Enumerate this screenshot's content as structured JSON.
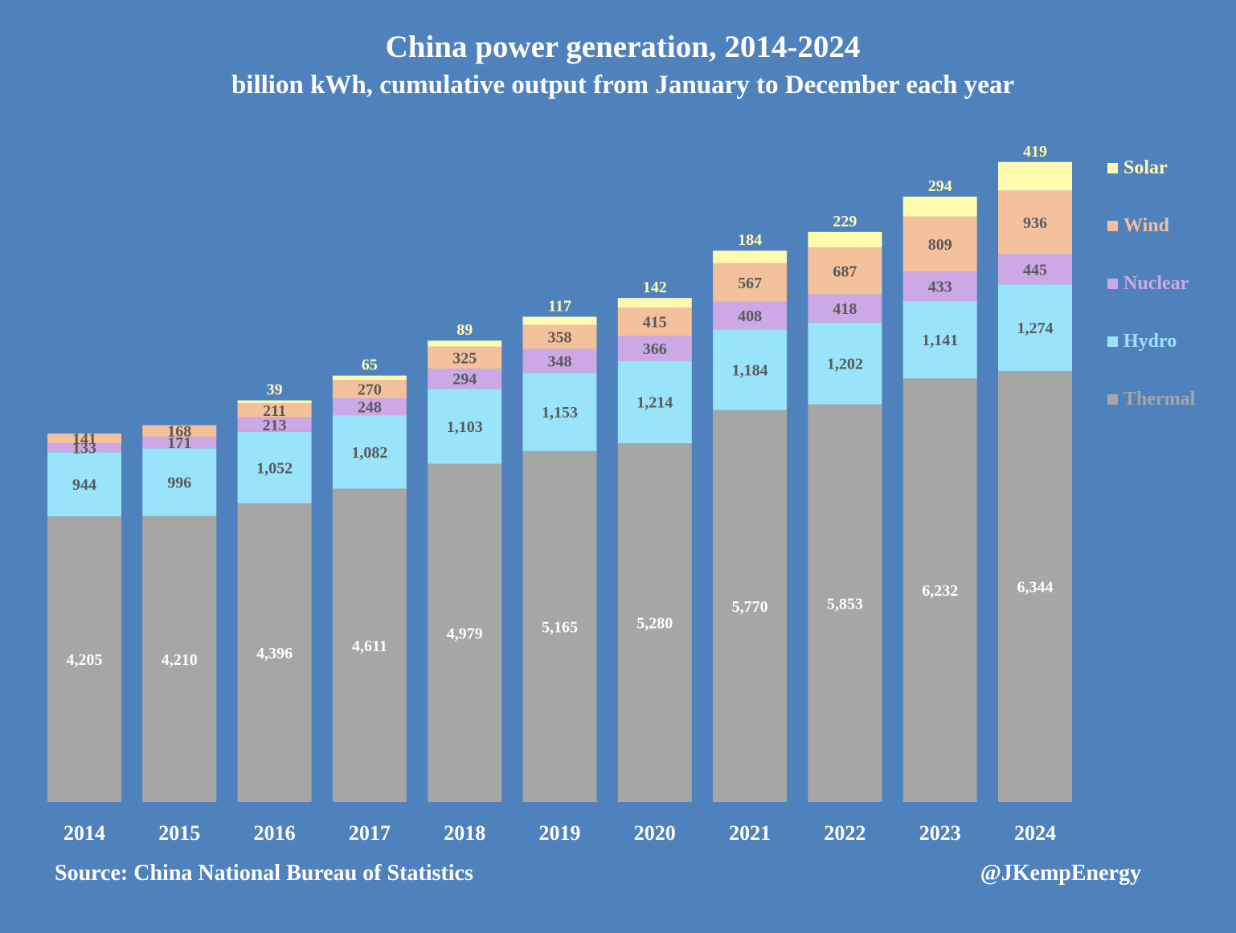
{
  "chart_data": {
    "type": "bar",
    "stacked": true,
    "title": "China power generation, 2014-2024",
    "subtitle": "billion kWh, cumulative output from January to December each year",
    "categories": [
      "2014",
      "2015",
      "2016",
      "2017",
      "2018",
      "2019",
      "2020",
      "2021",
      "2022",
      "2023",
      "2024"
    ],
    "series": [
      {
        "name": "Thermal",
        "color": "#a6a6a6",
        "label_color": "#ffffff",
        "values": [
          4205,
          4210,
          4396,
          4611,
          4979,
          5165,
          5280,
          5770,
          5853,
          6232,
          6344
        ],
        "labels": [
          "4,205",
          "4,210",
          "4,396",
          "4,611",
          "4,979",
          "5,165",
          "5,280",
          "5,770",
          "5,853",
          "6,232",
          "6,344"
        ]
      },
      {
        "name": "Hydro",
        "color": "#99e3fb",
        "label_color": "#595959",
        "values": [
          944,
          996,
          1052,
          1082,
          1103,
          1153,
          1214,
          1184,
          1202,
          1141,
          1274
        ],
        "labels": [
          "944",
          "996",
          "1,052",
          "1,082",
          "1,103",
          "1,153",
          "1,214",
          "1,184",
          "1,202",
          "1,141",
          "1,274"
        ]
      },
      {
        "name": "Nuclear",
        "color": "#cca8e6",
        "label_color": "#595959",
        "values": [
          133,
          171,
          213,
          248,
          294,
          348,
          366,
          408,
          418,
          433,
          445
        ],
        "labels": [
          "133",
          "171",
          "213",
          "248",
          "294",
          "348",
          "366",
          "408",
          "418",
          "433",
          "445"
        ]
      },
      {
        "name": "Wind",
        "color": "#f5c19c",
        "label_color": "#595959",
        "values": [
          141,
          168,
          211,
          270,
          325,
          358,
          415,
          567,
          687,
          809,
          936
        ],
        "labels": [
          "141",
          "168",
          "211",
          "270",
          "325",
          "358",
          "415",
          "567",
          "687",
          "809",
          "936"
        ]
      },
      {
        "name": "Solar",
        "color": "#fffcb0",
        "label_color": "#fffcb0",
        "values": [
          0,
          0,
          39,
          65,
          89,
          117,
          142,
          184,
          229,
          294,
          419
        ],
        "labels": [
          "",
          "",
          "39",
          "65",
          "89",
          "117",
          "142",
          "184",
          "229",
          "294",
          "419"
        ]
      }
    ],
    "legend_order": [
      "Solar",
      "Wind",
      "Nuclear",
      "Hydro",
      "Thermal"
    ],
    "legend_colors": {
      "Solar": "#fffcb0",
      "Wind": "#f5c19c",
      "Nuclear": "#cca8e6",
      "Hydro": "#99e3fb",
      "Thermal": "#a6a6a6"
    },
    "legend_position": "right",
    "ylim": [
      0,
      10000
    ],
    "grid": false,
    "xlabel": "",
    "ylabel": ""
  },
  "source": "Source: China National Bureau of Statistics",
  "credit": "@JKempEnergy",
  "colors": {
    "background": "#4f81bd",
    "text": "#ffffff"
  }
}
